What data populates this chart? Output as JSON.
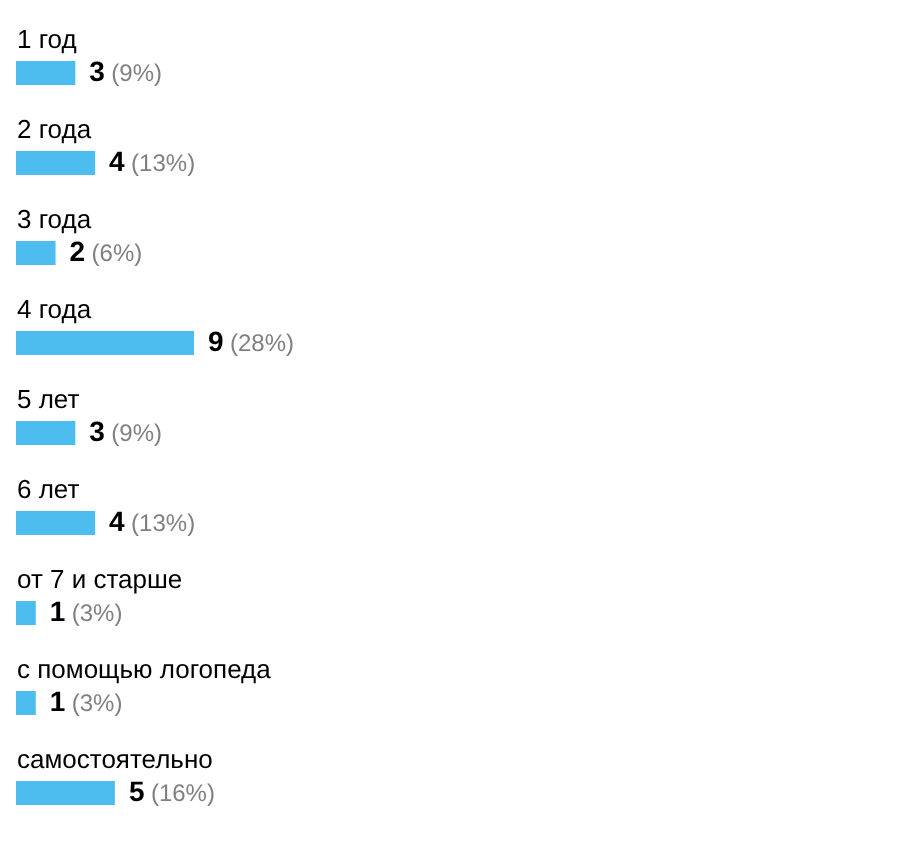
{
  "chart_data": {
    "type": "bar",
    "orientation": "horizontal",
    "categories": [
      "1 год",
      "2 года",
      "3 года",
      "4 года",
      "5 лет",
      "6 лет",
      "от 7 и старше",
      "с помощью логопеда",
      "самостоятельно"
    ],
    "values": [
      3,
      4,
      2,
      9,
      3,
      4,
      1,
      1,
      5
    ],
    "color": "#4dbdef",
    "data_labels": true,
    "tick_labels": "y",
    "annotations": [
      {
        "text": "(9%)",
        "x": 3,
        "y": "1 год"
      },
      {
        "text": "(13%)",
        "x": 4,
        "y": "2 года"
      },
      {
        "text": "(6%)",
        "x": 2,
        "y": "3 года"
      },
      {
        "text": "(28%)",
        "x": 9,
        "y": "4 года"
      },
      {
        "text": "(9%)",
        "x": 3,
        "y": "5 лет"
      },
      {
        "text": "(13%)",
        "x": 4,
        "y": "6 лет"
      },
      {
        "text": "(3%)",
        "x": 1,
        "y": "от 7 и старше"
      },
      {
        "text": "(3%)",
        "x": 1,
        "y": "с помощью логопеда"
      },
      {
        "text": "(16%)",
        "x": 5,
        "y": "самостоятельно"
      }
    ]
  }
}
